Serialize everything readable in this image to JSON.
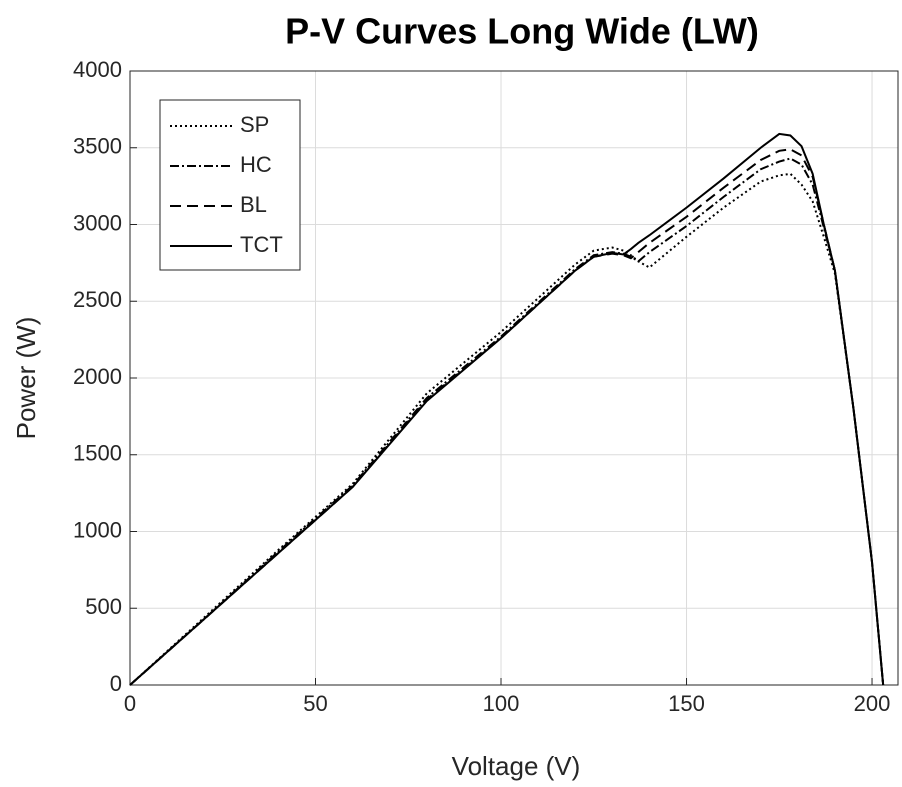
{
  "chart_data": {
    "type": "line",
    "title": "P-V Curves Long Wide (LW)",
    "x_label": "Voltage (V)",
    "y_label": "Power (W)",
    "x": [
      0,
      20,
      40,
      60,
      80,
      100,
      110,
      120,
      125,
      130,
      133,
      135,
      137,
      140,
      145,
      150,
      160,
      170,
      175,
      178,
      181,
      184,
      187,
      190,
      195,
      200,
      203
    ],
    "series": [
      {
        "name": "SP",
        "color": "#000000",
        "line_style": "dotted",
        "values": [
          0,
          440,
          880,
          1310,
          1900,
          2300,
          2520,
          2740,
          2830,
          2850,
          2830,
          2800,
          2760,
          2720,
          2820,
          2920,
          3110,
          3280,
          3320,
          3330,
          3260,
          3150,
          2920,
          2680,
          1800,
          800,
          0
        ]
      },
      {
        "name": "HC",
        "color": "#000000",
        "line_style": "dashdot",
        "values": [
          0,
          430,
          870,
          1300,
          1870,
          2270,
          2490,
          2710,
          2800,
          2820,
          2810,
          2790,
          2760,
          2820,
          2905,
          2990,
          3180,
          3360,
          3410,
          3430,
          3390,
          3260,
          2980,
          2700,
          1800,
          800,
          0
        ]
      },
      {
        "name": "BL",
        "color": "#000000",
        "line_style": "dashed",
        "values": [
          0,
          430,
          860,
          1290,
          1860,
          2260,
          2480,
          2700,
          2790,
          2810,
          2800,
          2780,
          2820,
          2880,
          2965,
          3050,
          3240,
          3420,
          3480,
          3490,
          3450,
          3310,
          3000,
          2700,
          1800,
          800,
          0
        ]
      },
      {
        "name": "TCT",
        "color": "#000000",
        "line_style": "solid",
        "values": [
          0,
          430,
          860,
          1290,
          1850,
          2260,
          2480,
          2700,
          2790,
          2815,
          2805,
          2840,
          2880,
          2930,
          3020,
          3110,
          3300,
          3500,
          3590,
          3580,
          3510,
          3330,
          3000,
          2700,
          1800,
          800,
          0
        ]
      }
    ],
    "xlim": [
      0,
      207
    ],
    "xticks": [
      0,
      50,
      100,
      150,
      200
    ],
    "ylim": [
      0,
      4000
    ],
    "yticks": [
      0,
      500,
      1000,
      1500,
      2000,
      2500,
      3000,
      3500,
      4000
    ],
    "grid": true,
    "legend": "upper left"
  }
}
